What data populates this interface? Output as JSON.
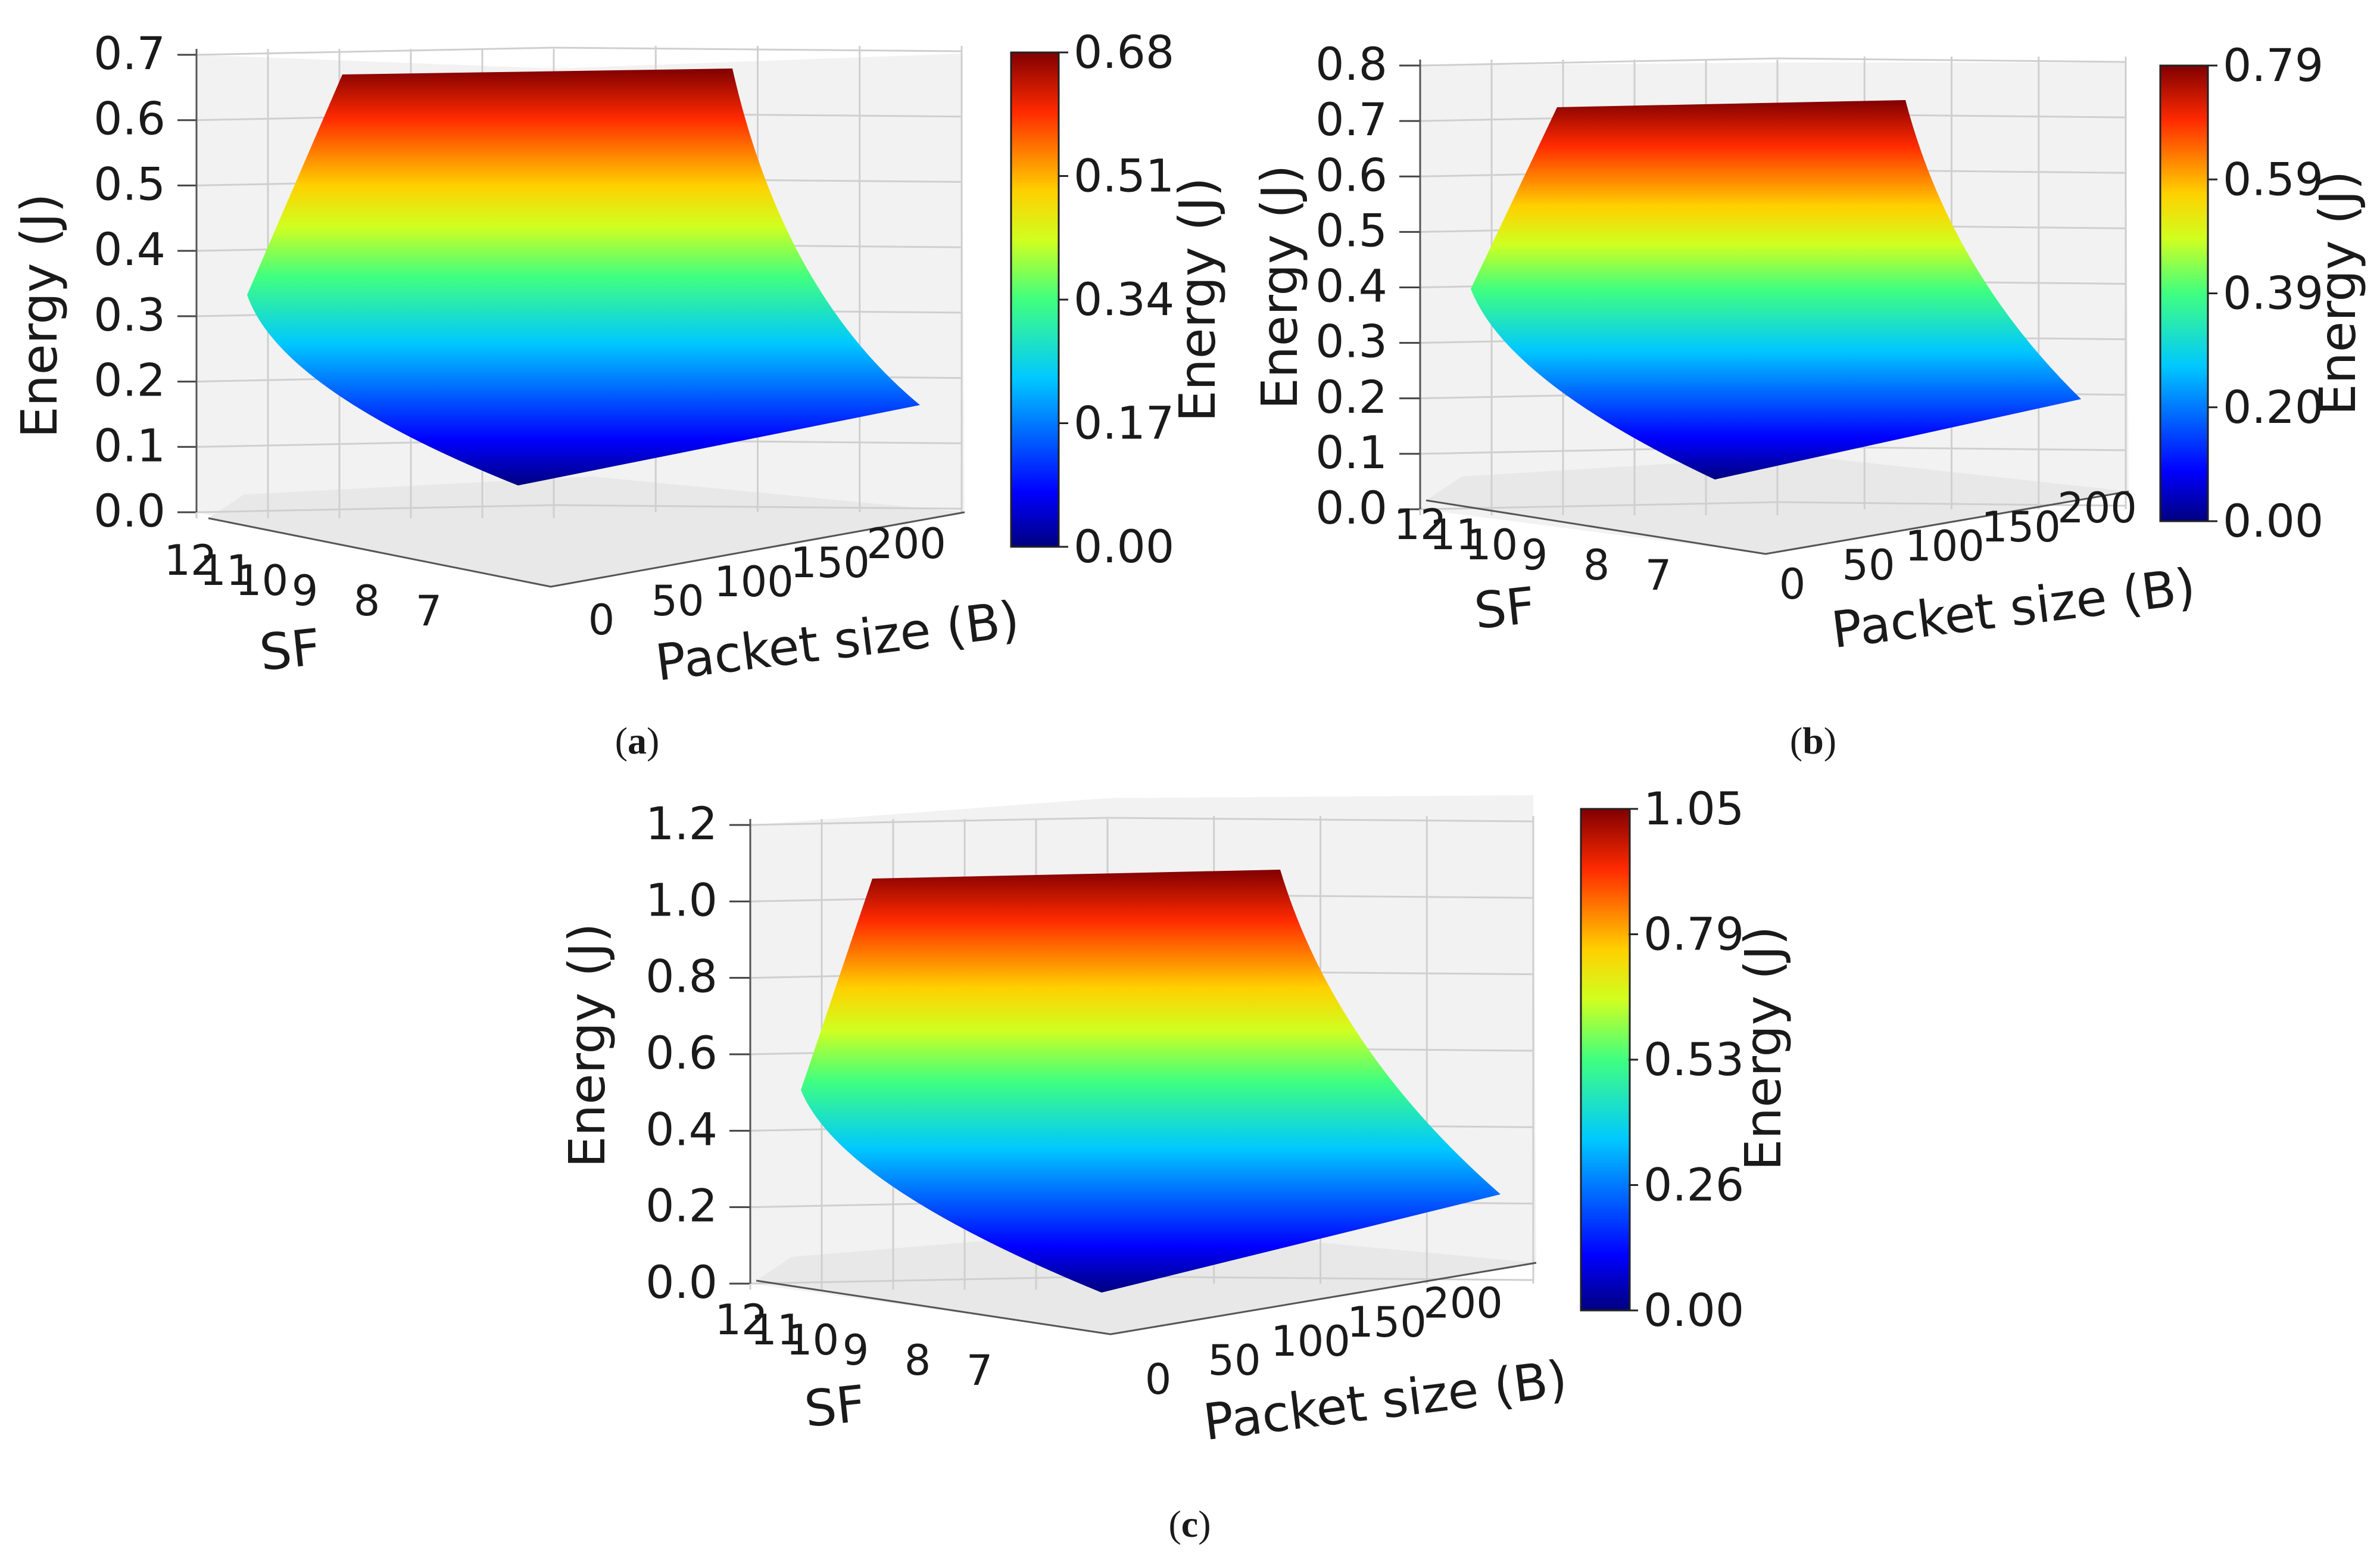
{
  "figure": {
    "panels": [
      {
        "id": "a",
        "caption_letter": "a"
      },
      {
        "id": "b",
        "caption_letter": "b"
      },
      {
        "id": "c",
        "caption_letter": "c"
      }
    ]
  },
  "chart_data": [
    {
      "type": "surface3d",
      "panel": "a",
      "zlabel": "Energy (J)",
      "xlabel": "SF",
      "ylabel": "Packet size (B)",
      "colorbar_label": "Energy (J)",
      "z_ticks": [
        "0.0",
        "0.1",
        "0.2",
        "0.3",
        "0.4",
        "0.5",
        "0.6",
        "0.7"
      ],
      "z_range": [
        0,
        0.7
      ],
      "sf_ticks": [
        "12",
        "11",
        "10",
        "9",
        "8",
        "7"
      ],
      "packet_ticks": [
        "0",
        "50",
        "100",
        "150",
        "200"
      ],
      "colorbar_ticks": [
        "0.68",
        "0.51",
        "0.34",
        "0.17",
        "0.00"
      ],
      "colorbar_range": [
        0,
        0.68
      ],
      "surface": {
        "max": 0.68,
        "sf12_p0": 0.36,
        "min": 0.06,
        "sf7_p200": 0.23
      }
    },
    {
      "type": "surface3d",
      "panel": "b",
      "zlabel": "Energy (J)",
      "xlabel": "SF",
      "ylabel": "Packet size (B)",
      "colorbar_label": "Energy (J)",
      "z_ticks": [
        "0.0",
        "0.1",
        "0.2",
        "0.3",
        "0.4",
        "0.5",
        "0.6",
        "0.7",
        "0.8"
      ],
      "z_range": [
        0,
        0.8
      ],
      "sf_ticks": [
        "12",
        "11",
        "10",
        "9",
        "8",
        "7"
      ],
      "packet_ticks": [
        "0",
        "50",
        "100",
        "150",
        "200"
      ],
      "colorbar_ticks": [
        "0.79",
        "0.59",
        "0.39",
        "0.20",
        "0.00"
      ],
      "colorbar_range": [
        0,
        0.79
      ],
      "surface": {
        "max": 0.79,
        "sf12_p0": 0.42,
        "min": 0.07,
        "sf7_p200": 0.26
      }
    },
    {
      "type": "surface3d",
      "panel": "c",
      "zlabel": "Energy (J)",
      "xlabel": "SF",
      "ylabel": "Packet size (B)",
      "colorbar_label": "Energy (J)",
      "z_ticks": [
        "0.0",
        "0.2",
        "0.4",
        "0.6",
        "0.8",
        "1.0",
        "1.2"
      ],
      "z_range": [
        0,
        1.2
      ],
      "sf_ticks": [
        "12",
        "11",
        "10",
        "9",
        "8",
        "7"
      ],
      "packet_ticks": [
        "0",
        "50",
        "100",
        "150",
        "200"
      ],
      "colorbar_ticks": [
        "1.05",
        "0.79",
        "0.53",
        "0.26",
        "0.00"
      ],
      "colorbar_range": [
        0,
        1.05
      ],
      "surface": {
        "max": 1.05,
        "sf12_p0": 0.55,
        "min": 0.07,
        "sf7_p200": 0.3
      }
    }
  ]
}
